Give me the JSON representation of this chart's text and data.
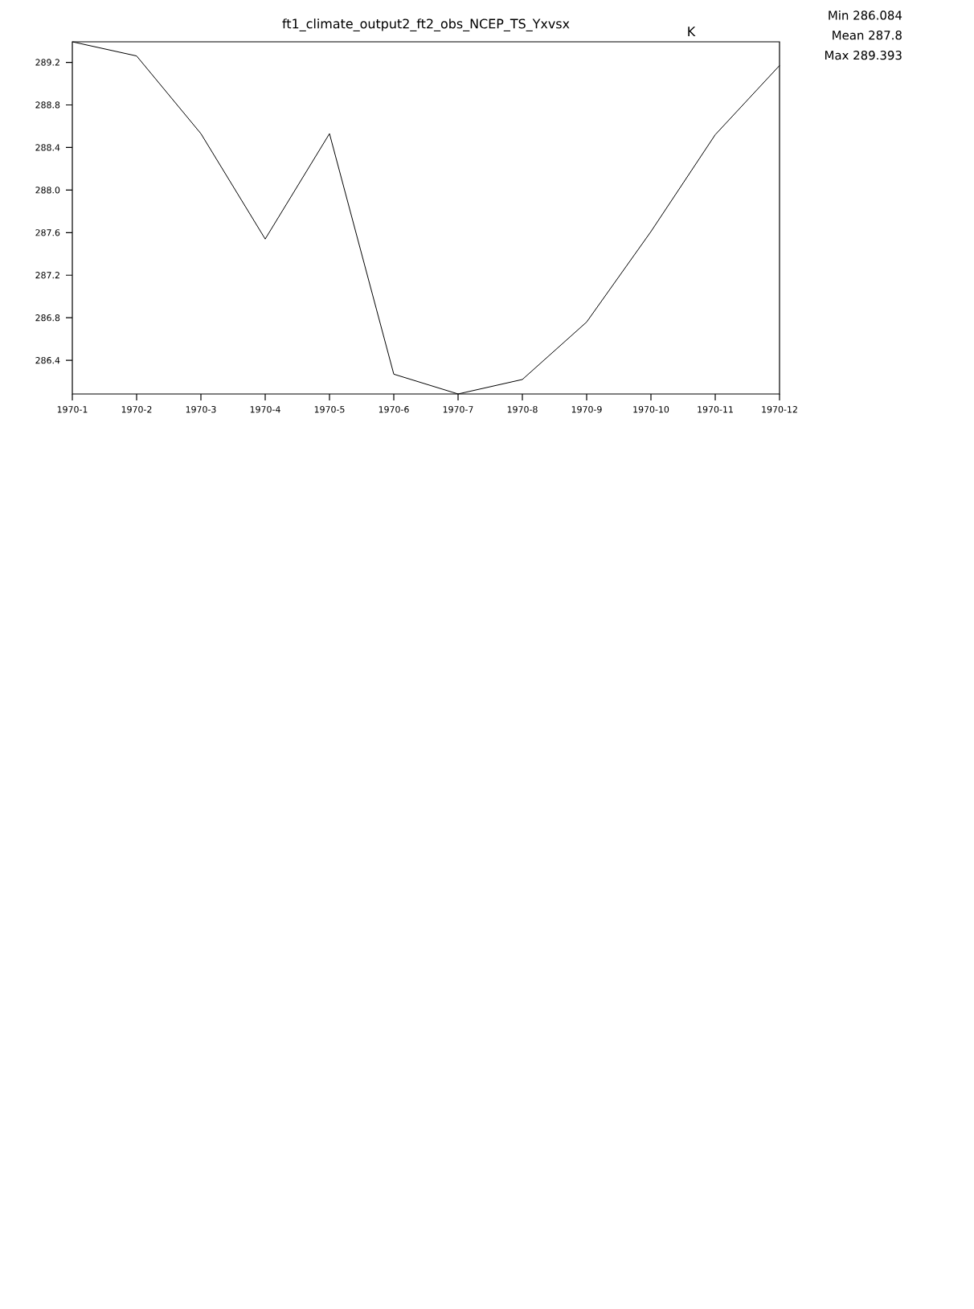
{
  "chart_data": {
    "type": "line",
    "title": "ft1_climate_output2_ft2_obs_NCEP_TS_Yxvsx",
    "ylabel": "K",
    "categories": [
      "1970-1",
      "1970-2",
      "1970-3",
      "1970-4",
      "1970-5",
      "1970-6",
      "1970-7",
      "1970-8",
      "1970-9",
      "1970-10",
      "1970-11",
      "1970-12"
    ],
    "series": [
      {
        "color": "#000000",
        "values": [
          289.393,
          289.26,
          288.53,
          287.54,
          288.53,
          286.27,
          286.084,
          286.22,
          286.76,
          287.61,
          288.52,
          289.17
        ]
      }
    ],
    "ylim": [
      286.084,
      289.393
    ],
    "yticks": [
      286.4,
      286.8,
      287.2,
      287.6,
      {
        "value": 288.0,
        "label": "288.0"
      },
      288.4,
      288.8,
      289.2
    ],
    "annotations": [
      "Min 286.084",
      "Mean 287.8",
      "Max 289.393"
    ],
    "marker": "none",
    "line_style": "solid"
  }
}
